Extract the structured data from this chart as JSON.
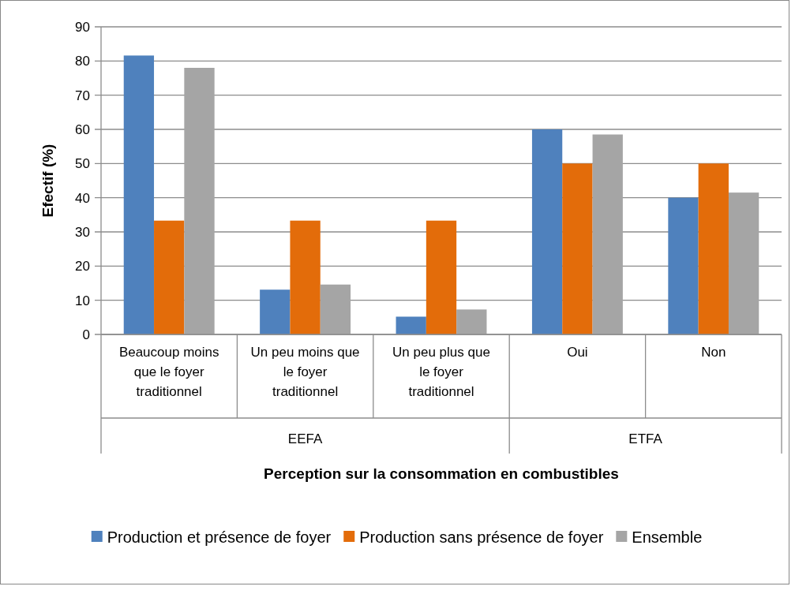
{
  "chart_data": {
    "type": "bar",
    "xlabel": "Perception sur la consommation en combustibles",
    "ylabel": "Efectif (%)",
    "categories": [
      "Beaucoup moins que le foyer traditionnel",
      "Un peu moins que le foyer traditionnel",
      "Un peu plus que le foyer traditionnel",
      "Oui",
      "Non"
    ],
    "annotations": [
      "EEFA",
      "ETFA"
    ],
    "series": [
      {
        "name": "Production et présence de foyer",
        "color": "#4f81bd",
        "values": [
          81.6,
          13.1,
          5.2,
          60,
          40
        ]
      },
      {
        "name": "Production sans présence de foyer",
        "color": "#e36c0a",
        "values": [
          33.3,
          33.3,
          33.3,
          50,
          50
        ]
      },
      {
        "name": "Ensemble",
        "color": "#a5a5a5",
        "values": [
          78,
          14.6,
          7.3,
          58.5,
          41.5
        ]
      }
    ],
    "ylim": [
      0,
      90
    ],
    "yticks": [
      0,
      10,
      20,
      30,
      40,
      50,
      60,
      70,
      80,
      90
    ],
    "grid": "y",
    "legend": "bottom"
  }
}
